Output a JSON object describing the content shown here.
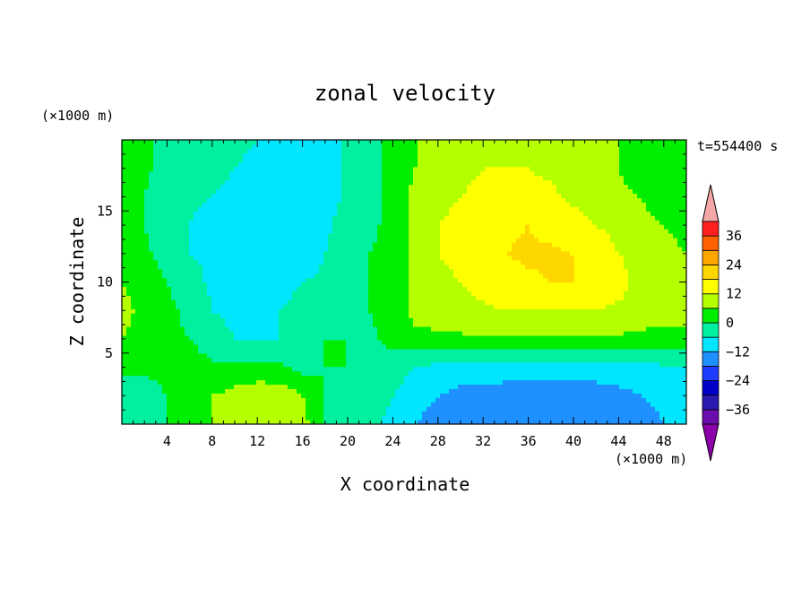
{
  "chart_data": {
    "type": "heatmap",
    "title": "zonal velocity",
    "xlabel": "X coordinate",
    "ylabel": "Z coordinate",
    "x_unit": "(×1000 m)",
    "y_unit": "(×1000 m)",
    "time_label": "t=554400 s",
    "xlim": [
      0,
      50
    ],
    "ylim": [
      0,
      20
    ],
    "x_ticks": [
      4,
      8,
      12,
      16,
      20,
      24,
      28,
      32,
      36,
      40,
      44,
      48
    ],
    "y_ticks": [
      5,
      10,
      15
    ],
    "colorbar": {
      "tick_labels": [
        "36",
        "24",
        "12",
        "0",
        "−12",
        "−24",
        "−36"
      ],
      "tick_values": [
        36,
        24,
        12,
        0,
        -12,
        -24,
        -36
      ],
      "min": -42,
      "max": 42,
      "levels": [
        {
          "lo": -42,
          "hi": -36,
          "color": "#6a0dad"
        },
        {
          "lo": -36,
          "hi": -30,
          "color": "#2a1ab0"
        },
        {
          "lo": -30,
          "hi": -24,
          "color": "#0000c8"
        },
        {
          "lo": -24,
          "hi": -18,
          "color": "#1e3cff"
        },
        {
          "lo": -18,
          "hi": -12,
          "color": "#1e90ff"
        },
        {
          "lo": -12,
          "hi": -6,
          "color": "#00e6ff"
        },
        {
          "lo": -6,
          "hi": 0,
          "color": "#00f0a0"
        },
        {
          "lo": 0,
          "hi": 6,
          "color": "#00ee00"
        },
        {
          "lo": 6,
          "hi": 12,
          "color": "#b4ff00"
        },
        {
          "lo": 12,
          "hi": 18,
          "color": "#ffff00"
        },
        {
          "lo": 18,
          "hi": 24,
          "color": "#ffd700"
        },
        {
          "lo": 24,
          "hi": 30,
          "color": "#ffa500"
        },
        {
          "lo": 30,
          "hi": 36,
          "color": "#ff6000"
        },
        {
          "lo": 36,
          "hi": 42,
          "color": "#ff2020"
        }
      ],
      "over_color": "#f4a7a7",
      "under_color": "#8b00a8"
    },
    "field": {
      "x": [
        0,
        2,
        4,
        6,
        8,
        10,
        12,
        14,
        16,
        18,
        20,
        22,
        24,
        26,
        28,
        30,
        32,
        34,
        36,
        38,
        40,
        42,
        44,
        46,
        48,
        50
      ],
      "z": [
        0,
        2,
        4,
        6,
        8,
        10,
        12,
        14,
        16,
        18,
        20
      ],
      "values": [
        [
          -3,
          -2,
          0,
          4,
          6,
          8,
          8,
          10,
          8,
          0,
          -2,
          -4,
          -8,
          -12,
          -14,
          -16,
          -18,
          -18,
          -18,
          -18,
          -18,
          -18,
          -18,
          -16,
          -12,
          -10
        ],
        [
          -4,
          -3,
          0,
          3,
          6,
          8,
          10,
          10,
          6,
          0,
          -2,
          -3,
          -6,
          -10,
          -12,
          -14,
          -14,
          -15,
          -16,
          -16,
          -16,
          -15,
          -14,
          -12,
          -10,
          -10
        ],
        [
          2,
          1,
          2,
          4,
          1,
          2,
          2,
          1,
          -2,
          0,
          0,
          -2,
          -3,
          -6,
          -8,
          -8,
          -8,
          -9,
          -9,
          -9,
          -9,
          -9,
          -8,
          -8,
          -7,
          -6
        ],
        [
          6,
          4,
          2,
          0,
          -4,
          -6,
          -6,
          -6,
          -6,
          0,
          0,
          -1,
          2,
          4,
          4,
          5,
          5,
          5,
          5,
          5,
          5,
          5,
          5,
          4,
          4,
          4
        ],
        [
          8,
          4,
          2,
          -2,
          -6,
          -7,
          -7,
          -6,
          -5,
          -5,
          -3,
          0,
          2,
          8,
          10,
          10,
          11,
          12,
          12,
          12,
          12,
          12,
          11,
          10,
          8,
          8
        ],
        [
          6,
          3,
          0,
          -4,
          -7,
          -8,
          -8,
          -7,
          -6,
          -5,
          -3,
          0,
          2,
          8,
          10,
          12,
          14,
          16,
          17,
          18,
          18,
          16,
          14,
          10,
          8,
          8
        ],
        [
          3,
          1,
          -2,
          -6,
          -7,
          -8,
          -9,
          -10,
          -9,
          -6,
          -3,
          0,
          3,
          8,
          12,
          14,
          16,
          18,
          19,
          19,
          18,
          16,
          12,
          10,
          8,
          6
        ],
        [
          1,
          0,
          -3,
          -6,
          -8,
          -10,
          -11,
          -12,
          -10,
          -7,
          -4,
          -2,
          3,
          8,
          12,
          14,
          16,
          17,
          18,
          16,
          14,
          12,
          10,
          8,
          6,
          4
        ],
        [
          1,
          0,
          -3,
          -5,
          -6,
          -8,
          -9,
          -12,
          -12,
          -8,
          -5,
          -3,
          2,
          8,
          10,
          12,
          14,
          14,
          14,
          13,
          11,
          10,
          8,
          6,
          2,
          0
        ],
        [
          2,
          1,
          -2,
          -3,
          -4,
          -6,
          -7,
          -10,
          -12,
          -8,
          -5,
          -2,
          2,
          6,
          8,
          10,
          12,
          12,
          12,
          11,
          10,
          8,
          6,
          2,
          0,
          0
        ],
        [
          2,
          1,
          -1,
          -2,
          -3,
          -5,
          -6,
          -8,
          -11,
          -8,
          -5,
          -2,
          2,
          6,
          8,
          9,
          10,
          10,
          10,
          10,
          9,
          8,
          6,
          2,
          0,
          0
        ]
      ]
    }
  }
}
